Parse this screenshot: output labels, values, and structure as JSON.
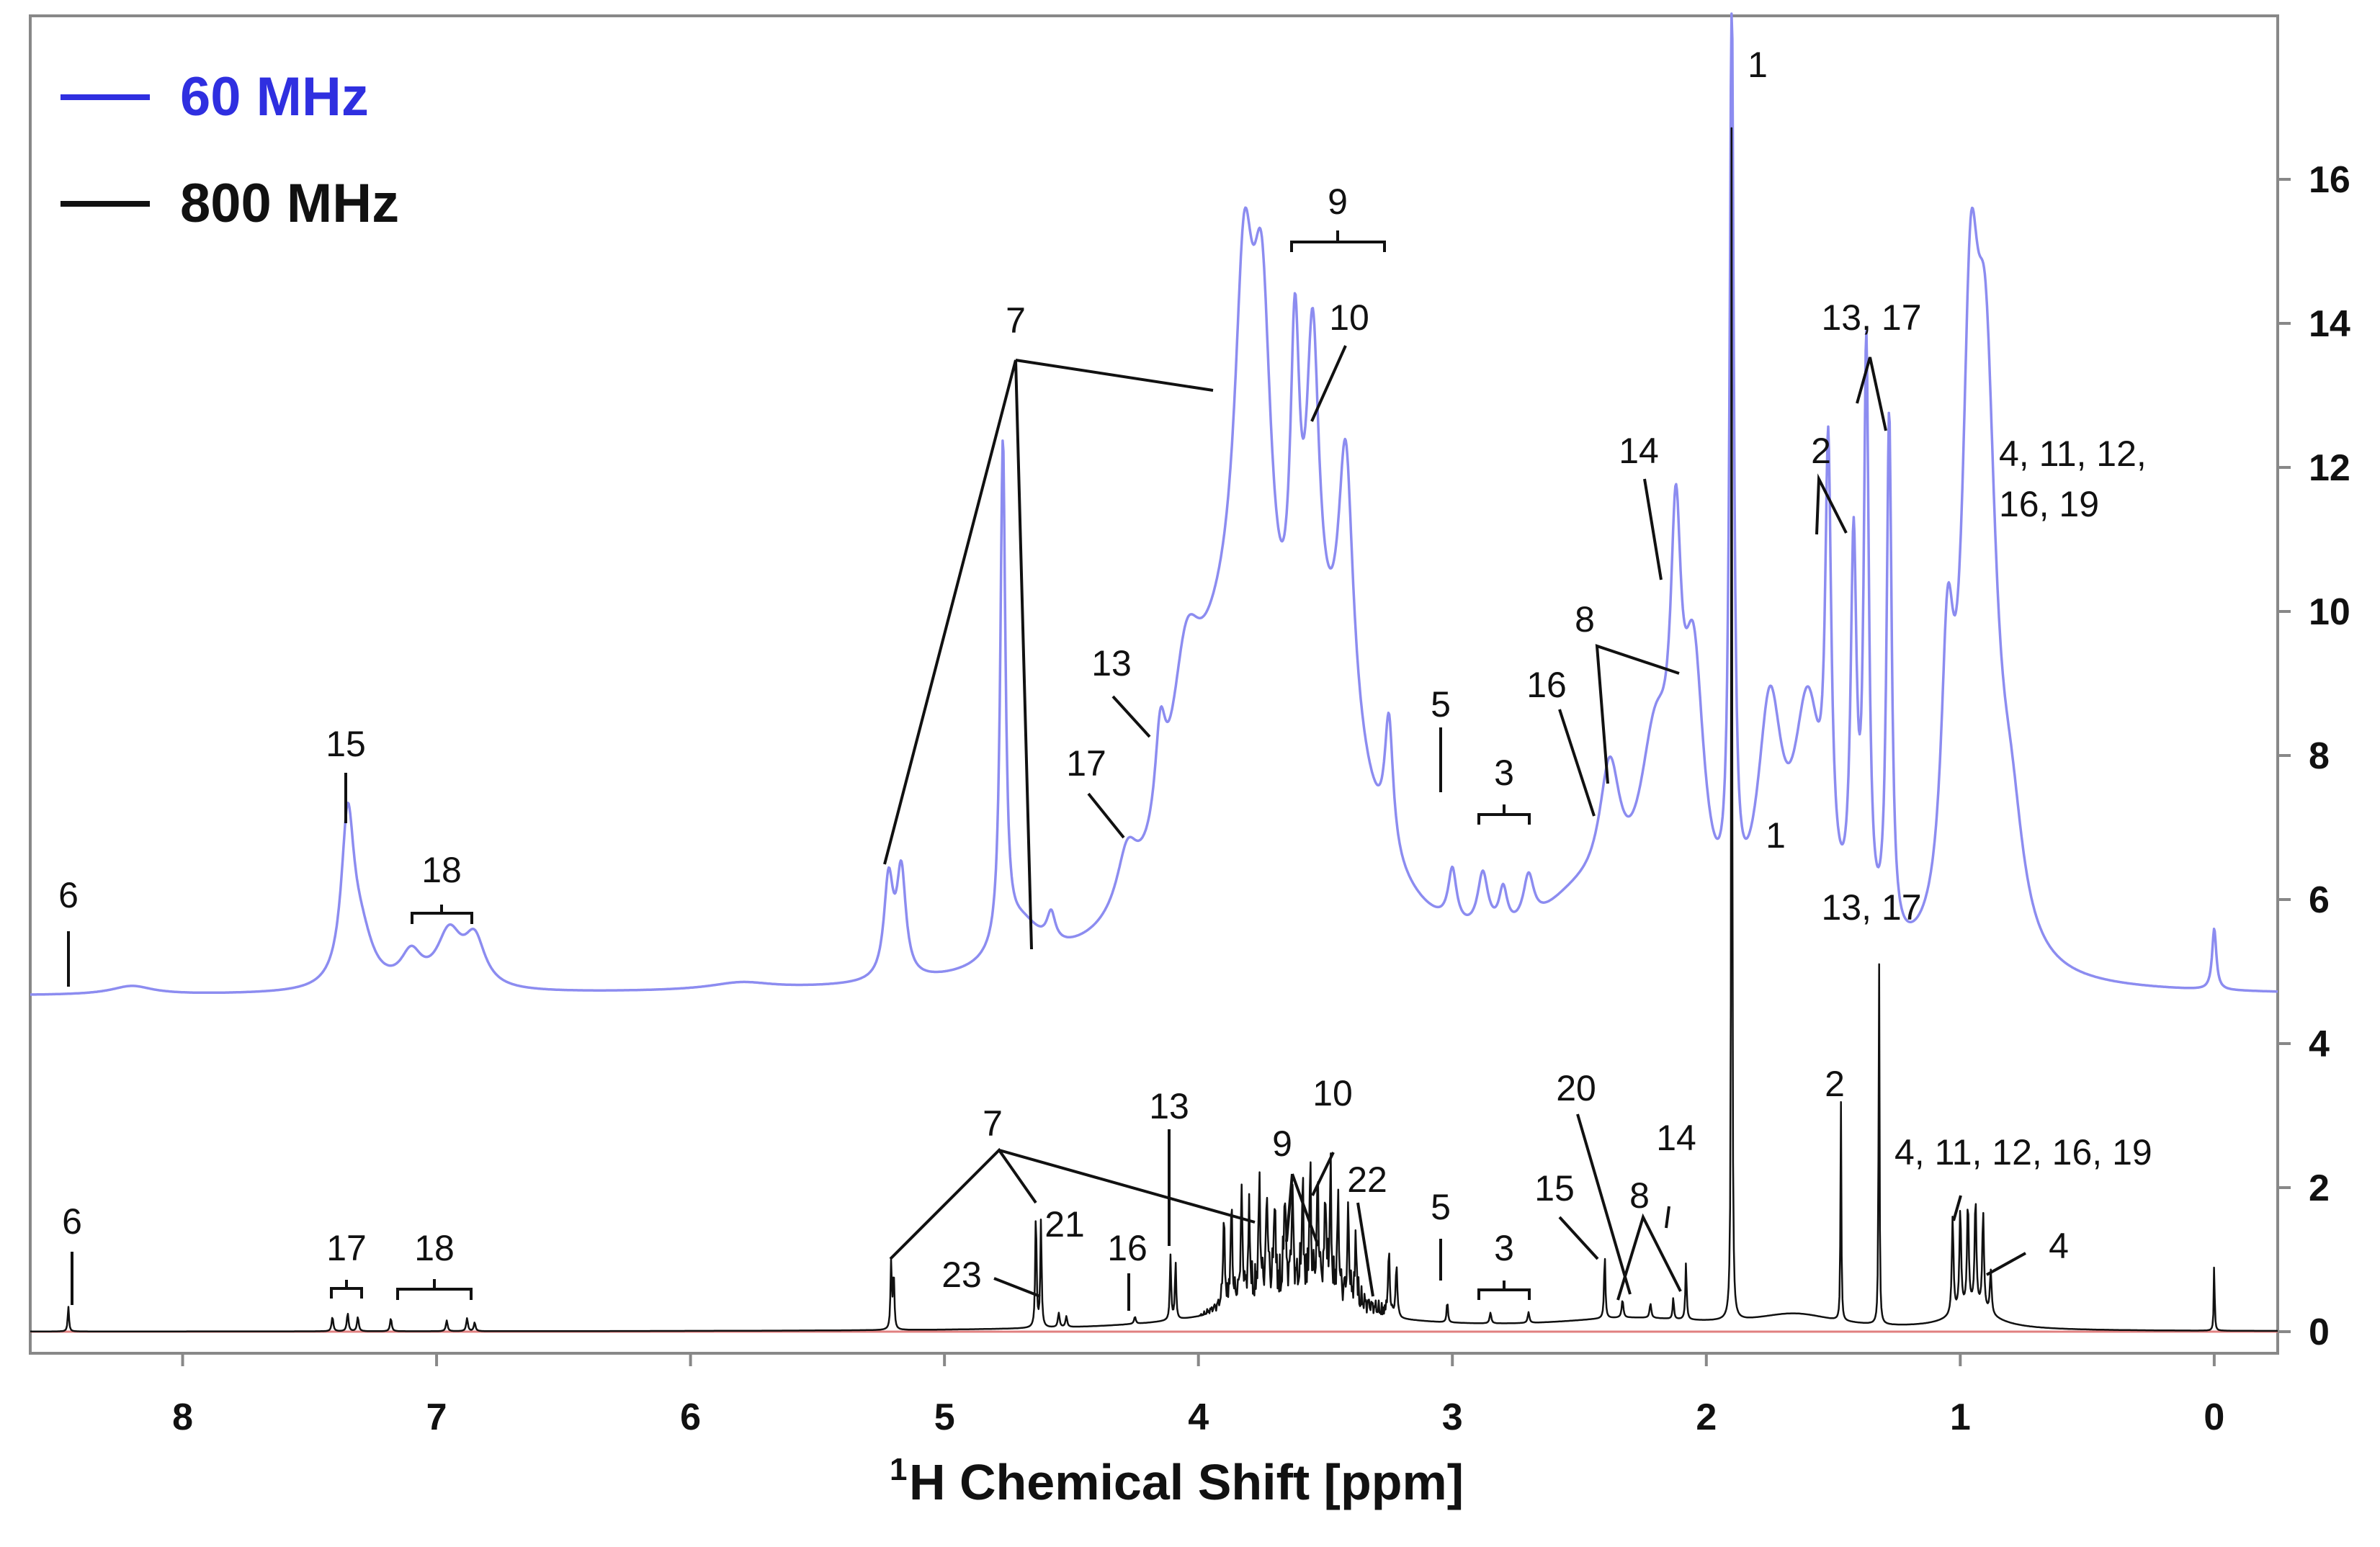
{
  "chart_data": {
    "type": "line",
    "title": "",
    "xlabel": {
      "superscript": "1",
      "text": "H Chemical Shift [ppm]"
    },
    "ylabel": "",
    "xlim": [
      8.6,
      -0.25
    ],
    "ylim": [
      -0.3,
      18.3
    ],
    "x_ticks": [
      8,
      7,
      6,
      5,
      4,
      3,
      2,
      1,
      0
    ],
    "y_ticks": [
      0,
      2,
      4,
      6,
      8,
      10,
      12,
      14,
      16
    ],
    "grid": false,
    "legend": {
      "position": "top-left",
      "entries": [
        {
          "label": "60 MHz",
          "color": "#2f2fe0"
        },
        {
          "label": "800 MHz",
          "color": "#111111"
        }
      ]
    },
    "series": [
      {
        "name": "60 MHz",
        "color": "#8c8cf0",
        "label_color": "#2f2fe0",
        "baseline": 4.65,
        "peaks": [
          {
            "x": 7.35,
            "h": 2.2,
            "w": 0.03
          },
          {
            "x": 7.3,
            "h": 0.7,
            "w": 0.06
          },
          {
            "x": 7.1,
            "h": 0.45,
            "w": 0.05
          },
          {
            "x": 6.95,
            "h": 0.75,
            "w": 0.06
          },
          {
            "x": 6.85,
            "h": 0.65,
            "w": 0.05
          },
          {
            "x": 8.2,
            "h": 0.12,
            "w": 0.1
          },
          {
            "x": 5.8,
            "h": 0.1,
            "w": 0.15
          },
          {
            "x": 5.22,
            "h": 1.35,
            "w": 0.022
          },
          {
            "x": 5.17,
            "h": 1.45,
            "w": 0.022
          },
          {
            "x": 4.77,
            "h": 7.0,
            "w": 0.012
          },
          {
            "x": 4.7,
            "h": 0.6,
            "w": 0.1
          },
          {
            "x": 4.58,
            "h": 0.4,
            "w": 0.02
          },
          {
            "x": 4.28,
            "h": 0.8,
            "w": 0.05
          },
          {
            "x": 4.15,
            "h": 1.3,
            "w": 0.025
          },
          {
            "x": 4.05,
            "h": 2.0,
            "w": 0.07
          },
          {
            "x": 3.82,
            "h": 5.0,
            "w": 0.045
          },
          {
            "x": 3.75,
            "h": 5.0,
            "w": 0.045
          },
          {
            "x": 3.62,
            "h": 4.4,
            "w": 0.022
          },
          {
            "x": 3.55,
            "h": 4.5,
            "w": 0.03
          },
          {
            "x": 3.42,
            "h": 3.8,
            "w": 0.035
          },
          {
            "x": 3.25,
            "h": 1.8,
            "w": 0.02
          },
          {
            "x": 3.9,
            "h": 3.5,
            "w": 0.2
          },
          {
            "x": 3.5,
            "h": 3.2,
            "w": 0.22
          },
          {
            "x": 3.0,
            "h": 0.75,
            "w": 0.02
          },
          {
            "x": 2.88,
            "h": 0.8,
            "w": 0.025
          },
          {
            "x": 2.8,
            "h": 0.55,
            "w": 0.02
          },
          {
            "x": 2.7,
            "h": 0.65,
            "w": 0.025
          },
          {
            "x": 2.5,
            "h": 0.9,
            "w": 0.22
          },
          {
            "x": 2.38,
            "h": 1.8,
            "w": 0.05
          },
          {
            "x": 2.2,
            "h": 2.6,
            "w": 0.08
          },
          {
            "x": 2.12,
            "h": 4.0,
            "w": 0.025
          },
          {
            "x": 2.05,
            "h": 3.5,
            "w": 0.05
          },
          {
            "x": 1.9,
            "h": 12.5,
            "w": 0.01
          },
          {
            "x": 1.75,
            "h": 3.2,
            "w": 0.06
          },
          {
            "x": 1.6,
            "h": 3.3,
            "w": 0.07
          },
          {
            "x": 1.52,
            "h": 5.8,
            "w": 0.014
          },
          {
            "x": 1.42,
            "h": 5.2,
            "w": 0.014
          },
          {
            "x": 1.37,
            "h": 8.0,
            "w": 0.012
          },
          {
            "x": 1.28,
            "h": 7.3,
            "w": 0.012
          },
          {
            "x": 1.05,
            "h": 3.5,
            "w": 0.03
          },
          {
            "x": 0.96,
            "h": 7.2,
            "w": 0.04
          },
          {
            "x": 0.9,
            "h": 7.0,
            "w": 0.05
          },
          {
            "x": 0.8,
            "h": 1.5,
            "w": 0.06
          },
          {
            "x": 0.0,
            "h": 0.85,
            "w": 0.01
          }
        ]
      },
      {
        "name": "800 MHz",
        "color": "#111111",
        "baseline": 0.0,
        "peaks": [
          {
            "x": 8.45,
            "h": 0.35,
            "w": 0.003
          },
          {
            "x": 7.41,
            "h": 0.2,
            "w": 0.004
          },
          {
            "x": 7.35,
            "h": 0.25,
            "w": 0.004
          },
          {
            "x": 7.31,
            "h": 0.2,
            "w": 0.004
          },
          {
            "x": 7.18,
            "h": 0.18,
            "w": 0.004
          },
          {
            "x": 6.96,
            "h": 0.15,
            "w": 0.004
          },
          {
            "x": 6.88,
            "h": 0.18,
            "w": 0.004
          },
          {
            "x": 6.85,
            "h": 0.12,
            "w": 0.004
          },
          {
            "x": 5.21,
            "h": 0.95,
            "w": 0.003
          },
          {
            "x": 5.2,
            "h": 0.8,
            "w": 0.003
          },
          {
            "x": 4.64,
            "h": 1.65,
            "w": 0.003
          },
          {
            "x": 4.62,
            "h": 1.5,
            "w": 0.003
          },
          {
            "x": 4.55,
            "h": 0.2,
            "w": 0.004
          },
          {
            "x": 4.52,
            "h": 0.15,
            "w": 0.004
          },
          {
            "x": 4.25,
            "h": 0.1,
            "w": 0.004
          },
          {
            "x": 4.11,
            "h": 0.9,
            "w": 0.003
          },
          {
            "x": 4.09,
            "h": 0.8,
            "w": 0.003
          },
          {
            "x": 3.9,
            "h": 1.2,
            "w": 0.004
          },
          {
            "x": 3.87,
            "h": 1.3,
            "w": 0.004
          },
          {
            "x": 3.83,
            "h": 1.4,
            "w": 0.004
          },
          {
            "x": 3.8,
            "h": 1.15,
            "w": 0.004
          },
          {
            "x": 3.76,
            "h": 1.5,
            "w": 0.004
          },
          {
            "x": 3.73,
            "h": 1.3,
            "w": 0.004
          },
          {
            "x": 3.7,
            "h": 1.2,
            "w": 0.004
          },
          {
            "x": 3.66,
            "h": 1.35,
            "w": 0.004
          },
          {
            "x": 3.63,
            "h": 1.25,
            "w": 0.004
          },
          {
            "x": 3.59,
            "h": 1.4,
            "w": 0.004
          },
          {
            "x": 3.56,
            "h": 1.55,
            "w": 0.004
          },
          {
            "x": 3.53,
            "h": 1.45,
            "w": 0.004
          },
          {
            "x": 3.5,
            "h": 1.3,
            "w": 0.004
          },
          {
            "x": 3.48,
            "h": 1.65,
            "w": 0.004
          },
          {
            "x": 3.45,
            "h": 1.25,
            "w": 0.004
          },
          {
            "x": 3.41,
            "h": 1.15,
            "w": 0.004
          },
          {
            "x": 3.38,
            "h": 0.9,
            "w": 0.004
          },
          {
            "x": 3.25,
            "h": 0.85,
            "w": 0.004
          },
          {
            "x": 3.22,
            "h": 0.7,
            "w": 0.004
          },
          {
            "x": 3.02,
            "h": 0.3,
            "w": 0.003
          },
          {
            "x": 2.85,
            "h": 0.15,
            "w": 0.004
          },
          {
            "x": 2.7,
            "h": 0.15,
            "w": 0.004
          },
          {
            "x": 2.4,
            "h": 0.9,
            "w": 0.003
          },
          {
            "x": 2.33,
            "h": 0.25,
            "w": 0.004
          },
          {
            "x": 2.22,
            "h": 0.2,
            "w": 0.004
          },
          {
            "x": 2.13,
            "h": 0.3,
            "w": 0.003
          },
          {
            "x": 2.08,
            "h": 0.8,
            "w": 0.003
          },
          {
            "x": 1.9,
            "h": 17.8,
            "w": 0.002
          },
          {
            "x": 1.47,
            "h": 3.05,
            "w": 0.002
          },
          {
            "x": 1.32,
            "h": 5.45,
            "w": 0.002
          },
          {
            "x": 1.03,
            "h": 1.35,
            "w": 0.004
          },
          {
            "x": 1.0,
            "h": 1.4,
            "w": 0.004
          },
          {
            "x": 0.97,
            "h": 1.45,
            "w": 0.004
          },
          {
            "x": 0.94,
            "h": 1.5,
            "w": 0.004
          },
          {
            "x": 0.91,
            "h": 1.35,
            "w": 0.004
          },
          {
            "x": 0.88,
            "h": 0.6,
            "w": 0.004
          },
          {
            "x": 0.0,
            "h": 1.0,
            "w": 0.002
          }
        ],
        "humps": [
          {
            "x": 3.65,
            "h": 0.4,
            "w": 0.35
          },
          {
            "x": 2.3,
            "h": 0.15,
            "w": 0.35
          },
          {
            "x": 1.65,
            "h": 0.2,
            "w": 0.2
          },
          {
            "x": 0.95,
            "h": 0.3,
            "w": 0.1
          }
        ],
        "noise": {
          "from": 4.0,
          "to": 3.2,
          "amp": 0.6
        },
        "reference_line_color": "#e08080"
      }
    ],
    "annotations_60MHz": [
      "1",
      "2",
      "3",
      "5",
      "6",
      "7",
      "8",
      "9",
      "10",
      "13",
      "13, 17",
      "14",
      "15",
      "16",
      "17",
      "18",
      "4, 11, 12,",
      "16, 19"
    ],
    "annotations_800MHz": [
      "1",
      "2",
      "3",
      "4",
      "4, 11, 12, 16, 19",
      "5",
      "6",
      "7",
      "8",
      "9",
      "10",
      "13",
      "13, 17",
      "14",
      "15",
      "16",
      "17",
      "18",
      "20",
      "21",
      "22",
      "23"
    ]
  }
}
